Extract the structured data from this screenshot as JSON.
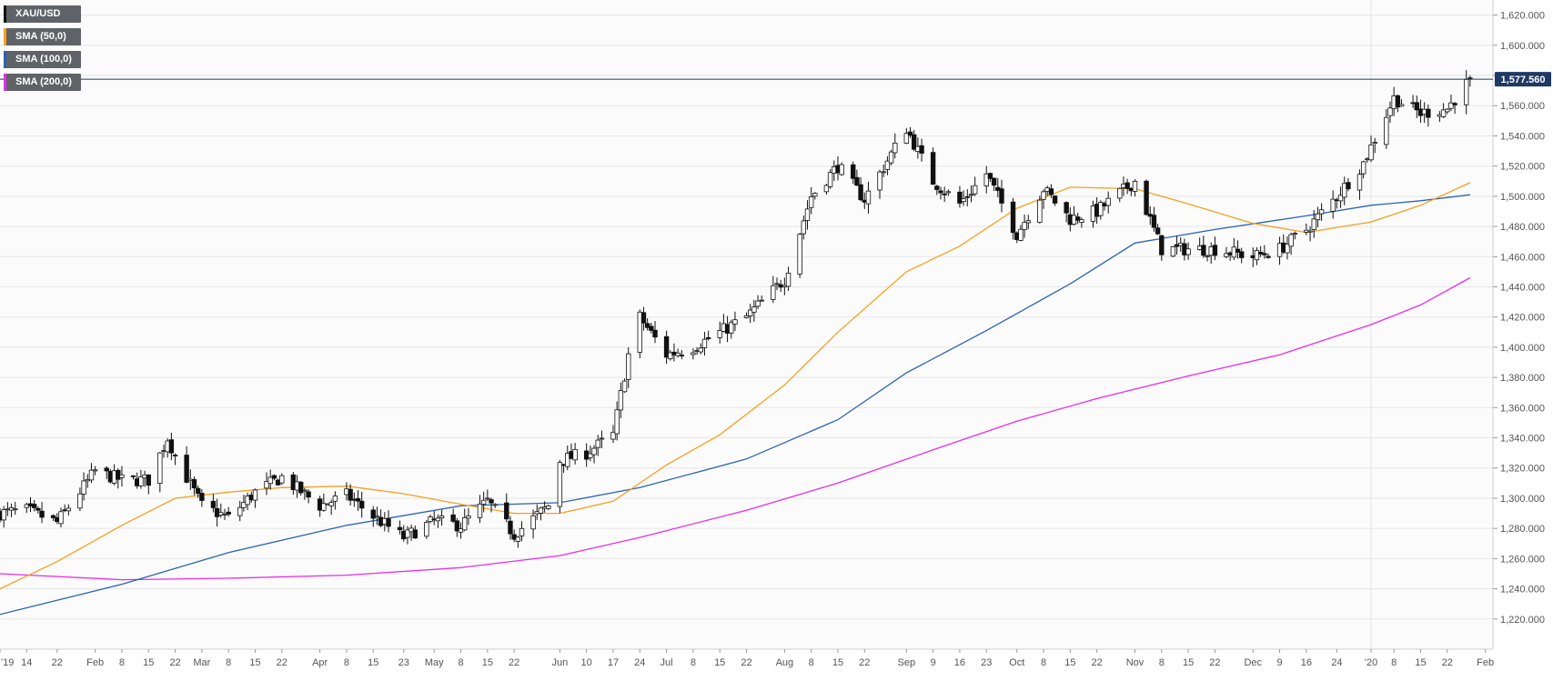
{
  "chart_data": {
    "type": "candlestick",
    "symbol": "XAU/USD",
    "timeframe": "daily",
    "legend": [
      {
        "label": "XAU/USD",
        "color": "#111111"
      },
      {
        "label": "SMA (50,0)",
        "color": "#f5a020"
      },
      {
        "label": "SMA (100,0)",
        "color": "#2a64b4"
      },
      {
        "label": "SMA (200,0)",
        "color": "#e62ee6"
      }
    ],
    "last_price": 1577.56,
    "last_price_label": "1,577.560",
    "y_axis": {
      "min": 1200,
      "max": 1630,
      "ticks": [
        1220,
        1240,
        1260,
        1280,
        1300,
        1320,
        1340,
        1360,
        1380,
        1400,
        1420,
        1440,
        1460,
        1480,
        1500,
        1520,
        1540,
        1560,
        1580,
        1600,
        1620
      ],
      "tick_labels": [
        "1,220.000",
        "1,240.000",
        "1,260.000",
        "1,280.000",
        "1,300.000",
        "1,320.000",
        "1,340.000",
        "1,360.000",
        "1,380.000",
        "1,400.000",
        "1,420.000",
        "1,440.000",
        "1,460.000",
        "1,480.000",
        "1,500.000",
        "1,520.000",
        "1,540.000",
        "1,560.000",
        "1,580.000",
        "1,600.000",
        "1,620.000"
      ]
    },
    "x_axis": {
      "start_date": "2019-01-07",
      "end_date": "2020-02-03",
      "ticks": [
        {
          "date": "2019-01-07",
          "label": "'19"
        },
        {
          "date": "2019-01-14",
          "label": "14"
        },
        {
          "date": "2019-01-22",
          "label": "22"
        },
        {
          "date": "2019-02-01",
          "label": "Feb"
        },
        {
          "date": "2019-02-08",
          "label": "8"
        },
        {
          "date": "2019-02-15",
          "label": "15"
        },
        {
          "date": "2019-02-22",
          "label": "22"
        },
        {
          "date": "2019-03-01",
          "label": "Mar"
        },
        {
          "date": "2019-03-08",
          "label": "8"
        },
        {
          "date": "2019-03-15",
          "label": "15"
        },
        {
          "date": "2019-03-22",
          "label": "22"
        },
        {
          "date": "2019-04-01",
          "label": "Apr"
        },
        {
          "date": "2019-04-08",
          "label": "8"
        },
        {
          "date": "2019-04-15",
          "label": "15"
        },
        {
          "date": "2019-04-23",
          "label": "23"
        },
        {
          "date": "2019-05-01",
          "label": "May"
        },
        {
          "date": "2019-05-08",
          "label": "8"
        },
        {
          "date": "2019-05-15",
          "label": "15"
        },
        {
          "date": "2019-05-22",
          "label": "22"
        },
        {
          "date": "2019-06-03",
          "label": "Jun"
        },
        {
          "date": "2019-06-10",
          "label": "10"
        },
        {
          "date": "2019-06-17",
          "label": "17"
        },
        {
          "date": "2019-06-24",
          "label": "24"
        },
        {
          "date": "2019-07-01",
          "label": "Jul"
        },
        {
          "date": "2019-07-08",
          "label": "8"
        },
        {
          "date": "2019-07-15",
          "label": "15"
        },
        {
          "date": "2019-07-22",
          "label": "22"
        },
        {
          "date": "2019-08-01",
          "label": "Aug"
        },
        {
          "date": "2019-08-08",
          "label": "8"
        },
        {
          "date": "2019-08-15",
          "label": "15"
        },
        {
          "date": "2019-08-22",
          "label": "22"
        },
        {
          "date": "2019-09-02",
          "label": "Sep"
        },
        {
          "date": "2019-09-09",
          "label": "9"
        },
        {
          "date": "2019-09-16",
          "label": "16"
        },
        {
          "date": "2019-09-23",
          "label": "23"
        },
        {
          "date": "2019-10-01",
          "label": "Oct"
        },
        {
          "date": "2019-10-08",
          "label": "8"
        },
        {
          "date": "2019-10-15",
          "label": "15"
        },
        {
          "date": "2019-10-22",
          "label": "22"
        },
        {
          "date": "2019-11-01",
          "label": "Nov"
        },
        {
          "date": "2019-11-08",
          "label": "8"
        },
        {
          "date": "2019-11-15",
          "label": "15"
        },
        {
          "date": "2019-11-22",
          "label": "22"
        },
        {
          "date": "2019-12-02",
          "label": "Dec"
        },
        {
          "date": "2019-12-09",
          "label": "9"
        },
        {
          "date": "2019-12-16",
          "label": "16"
        },
        {
          "date": "2019-12-24",
          "label": "24"
        },
        {
          "date": "2020-01-02",
          "label": "'20"
        },
        {
          "date": "2020-01-08",
          "label": "8"
        },
        {
          "date": "2020-01-15",
          "label": "15"
        },
        {
          "date": "2020-01-22",
          "label": "22"
        },
        {
          "date": "2020-02-01",
          "label": "Feb"
        }
      ]
    },
    "close_path": [
      [
        "2019-01-07",
        1290
      ],
      [
        "2019-01-14",
        1292
      ],
      [
        "2019-01-22",
        1284
      ],
      [
        "2019-02-01",
        1318
      ],
      [
        "2019-02-08",
        1312
      ],
      [
        "2019-02-15",
        1312
      ],
      [
        "2019-02-20",
        1340
      ],
      [
        "2019-02-22",
        1328
      ],
      [
        "2019-03-01",
        1295
      ],
      [
        "2019-03-08",
        1287
      ],
      [
        "2019-03-15",
        1304
      ],
      [
        "2019-03-22",
        1314
      ],
      [
        "2019-04-01",
        1295
      ],
      [
        "2019-04-08",
        1302
      ],
      [
        "2019-04-15",
        1288
      ],
      [
        "2019-04-23",
        1274
      ],
      [
        "2019-05-01",
        1285
      ],
      [
        "2019-05-08",
        1282
      ],
      [
        "2019-05-15",
        1298
      ],
      [
        "2019-05-22",
        1276
      ],
      [
        "2019-05-31",
        1295
      ],
      [
        "2019-06-03",
        1325
      ],
      [
        "2019-06-10",
        1330
      ],
      [
        "2019-06-17",
        1342
      ],
      [
        "2019-06-21",
        1395
      ],
      [
        "2019-06-24",
        1420
      ],
      [
        "2019-07-01",
        1395
      ],
      [
        "2019-07-08",
        1400
      ],
      [
        "2019-07-15",
        1410
      ],
      [
        "2019-07-22",
        1420
      ],
      [
        "2019-08-01",
        1445
      ],
      [
        "2019-08-08",
        1500
      ],
      [
        "2019-08-15",
        1520
      ],
      [
        "2019-08-22",
        1498
      ],
      [
        "2019-09-02",
        1545
      ],
      [
        "2019-09-09",
        1510
      ],
      [
        "2019-09-16",
        1495
      ],
      [
        "2019-09-23",
        1515
      ],
      [
        "2019-10-01",
        1475
      ],
      [
        "2019-10-08",
        1505
      ],
      [
        "2019-10-15",
        1485
      ],
      [
        "2019-10-22",
        1490
      ],
      [
        "2019-11-01",
        1510
      ],
      [
        "2019-11-08",
        1465
      ],
      [
        "2019-11-15",
        1465
      ],
      [
        "2019-11-22",
        1465
      ],
      [
        "2019-12-02",
        1460
      ],
      [
        "2019-12-09",
        1465
      ],
      [
        "2019-12-16",
        1478
      ],
      [
        "2019-12-24",
        1500
      ],
      [
        "2019-12-31",
        1522
      ],
      [
        "2020-01-08",
        1565
      ],
      [
        "2020-01-15",
        1555
      ],
      [
        "2020-01-22",
        1558
      ],
      [
        "2020-01-28",
        1577.56
      ]
    ],
    "sma_50": [
      [
        "2019-01-07",
        1240
      ],
      [
        "2019-01-22",
        1258
      ],
      [
        "2019-02-08",
        1282
      ],
      [
        "2019-02-22",
        1300
      ],
      [
        "2019-03-08",
        1304
      ],
      [
        "2019-03-22",
        1307
      ],
      [
        "2019-04-08",
        1308
      ],
      [
        "2019-04-23",
        1303
      ],
      [
        "2019-05-08",
        1296
      ],
      [
        "2019-05-22",
        1290
      ],
      [
        "2019-06-03",
        1290
      ],
      [
        "2019-06-17",
        1298
      ],
      [
        "2019-07-01",
        1322
      ],
      [
        "2019-07-15",
        1342
      ],
      [
        "2019-08-01",
        1375
      ],
      [
        "2019-08-15",
        1410
      ],
      [
        "2019-09-02",
        1450
      ],
      [
        "2019-09-16",
        1467
      ],
      [
        "2019-10-01",
        1492
      ],
      [
        "2019-10-15",
        1506
      ],
      [
        "2019-11-01",
        1505
      ],
      [
        "2019-11-15",
        1495
      ],
      [
        "2019-12-02",
        1482
      ],
      [
        "2019-12-16",
        1476
      ],
      [
        "2020-01-02",
        1483
      ],
      [
        "2020-01-15",
        1494
      ],
      [
        "2020-01-28",
        1509
      ]
    ],
    "sma_100": [
      [
        "2019-01-07",
        1223
      ],
      [
        "2019-02-08",
        1243
      ],
      [
        "2019-03-08",
        1264
      ],
      [
        "2019-04-08",
        1282
      ],
      [
        "2019-05-08",
        1295
      ],
      [
        "2019-06-03",
        1297
      ],
      [
        "2019-06-24",
        1307
      ],
      [
        "2019-07-22",
        1326
      ],
      [
        "2019-08-15",
        1352
      ],
      [
        "2019-09-02",
        1383
      ],
      [
        "2019-09-23",
        1411
      ],
      [
        "2019-10-15",
        1442
      ],
      [
        "2019-11-01",
        1469
      ],
      [
        "2019-11-22",
        1478
      ],
      [
        "2019-12-16",
        1487
      ],
      [
        "2020-01-02",
        1494
      ],
      [
        "2020-01-15",
        1497
      ],
      [
        "2020-01-28",
        1501
      ]
    ],
    "sma_200": [
      [
        "2019-01-07",
        1250
      ],
      [
        "2019-02-08",
        1246
      ],
      [
        "2019-03-08",
        1247
      ],
      [
        "2019-04-08",
        1249
      ],
      [
        "2019-05-08",
        1254
      ],
      [
        "2019-06-03",
        1262
      ],
      [
        "2019-06-24",
        1274
      ],
      [
        "2019-07-22",
        1292
      ],
      [
        "2019-08-15",
        1310
      ],
      [
        "2019-09-09",
        1332
      ],
      [
        "2019-10-01",
        1351
      ],
      [
        "2019-10-22",
        1366
      ],
      [
        "2019-11-15",
        1381
      ],
      [
        "2019-12-09",
        1395
      ],
      [
        "2020-01-02",
        1415
      ],
      [
        "2020-01-15",
        1428
      ],
      [
        "2020-01-28",
        1446
      ]
    ],
    "grid": true,
    "price_line_color": "#1f3864"
  }
}
